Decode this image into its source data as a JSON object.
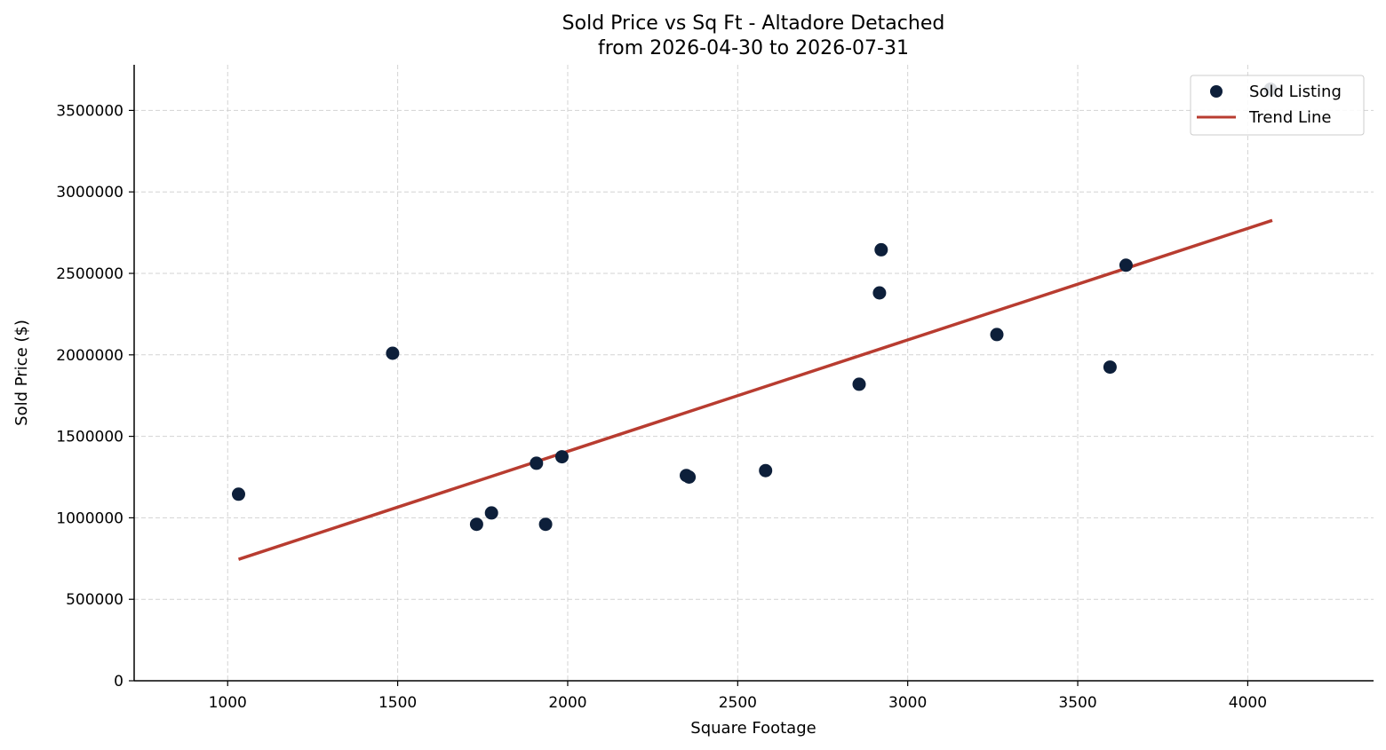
{
  "chart_data": {
    "type": "scatter",
    "title_line1": "Sold Price vs Sq Ft - Altadore Detached",
    "title_line2": "from 2026-04-30 to 2026-07-31",
    "xlabel": "Square Footage",
    "ylabel": "Sold Price ($)",
    "xlim": [
      725,
      4370
    ],
    "ylim": [
      0,
      3780000
    ],
    "x_ticks": [
      1000,
      1500,
      2000,
      2500,
      3000,
      3500,
      4000
    ],
    "y_ticks": [
      0,
      500000,
      1000000,
      1500000,
      2000000,
      2500000,
      3000000,
      3500000
    ],
    "grid": true,
    "legend_position": "top-right",
    "series": [
      {
        "name": "Sold Listing",
        "kind": "scatter",
        "color": "#0d1f3a",
        "points": [
          {
            "x": 1032,
            "y": 1145000
          },
          {
            "x": 1485,
            "y": 2010000
          },
          {
            "x": 1732,
            "y": 960000
          },
          {
            "x": 1776,
            "y": 1030000
          },
          {
            "x": 1908,
            "y": 1335000
          },
          {
            "x": 1935,
            "y": 960000
          },
          {
            "x": 1983,
            "y": 1375000
          },
          {
            "x": 2349,
            "y": 1260000
          },
          {
            "x": 2357,
            "y": 1250000
          },
          {
            "x": 2582,
            "y": 1290000
          },
          {
            "x": 2857,
            "y": 1820000
          },
          {
            "x": 2917,
            "y": 2380000
          },
          {
            "x": 2922,
            "y": 2645000
          },
          {
            "x": 3262,
            "y": 2125000
          },
          {
            "x": 3595,
            "y": 1925000
          },
          {
            "x": 3642,
            "y": 2550000
          },
          {
            "x": 4067,
            "y": 3630000
          }
        ]
      },
      {
        "name": "Trend Line",
        "kind": "line",
        "color": "#b83c30",
        "points": [
          {
            "x": 1032,
            "y": 745000
          },
          {
            "x": 4072,
            "y": 2825000
          }
        ]
      }
    ]
  }
}
